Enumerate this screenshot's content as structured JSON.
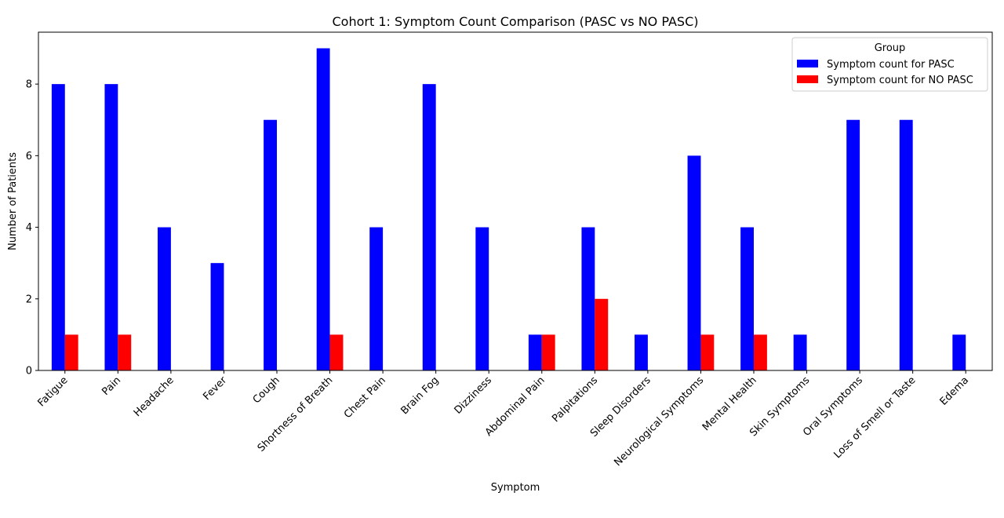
{
  "chart_data": {
    "type": "bar",
    "title": "Cohort 1: Symptom Count Comparison (PASC vs NO PASC)",
    "xlabel": "Symptom",
    "ylabel": "Number of Patients",
    "ylim": [
      0,
      9.45
    ],
    "yticks": [
      0,
      2,
      4,
      6,
      8
    ],
    "grid": false,
    "legend": {
      "title": "Group",
      "placement": "top-right"
    },
    "categories": [
      "Fatigue",
      "Pain",
      "Headache",
      "Fever",
      "Cough",
      "Shortness of Breath",
      "Chest Pain",
      "Brain Fog",
      "Dizziness",
      "Abdominal Pain",
      "Palpitations",
      "Sleep Disorders",
      "Neurological Symptoms",
      "Mental Health",
      "Skin Symptoms",
      "Oral Symptoms",
      "Loss of Smell or Taste",
      "Edema"
    ],
    "series": [
      {
        "name": "Symptom count for PASC",
        "color": "#0000ff",
        "values": [
          8,
          8,
          4,
          3,
          7,
          9,
          4,
          8,
          4,
          1,
          4,
          1,
          6,
          4,
          1,
          7,
          7,
          1
        ]
      },
      {
        "name": "Symptom count for NO PASC",
        "color": "#ff0000",
        "values": [
          1,
          1,
          0,
          0,
          0,
          1,
          0,
          0,
          0,
          1,
          2,
          0,
          1,
          1,
          0,
          0,
          0,
          0
        ]
      }
    ]
  }
}
